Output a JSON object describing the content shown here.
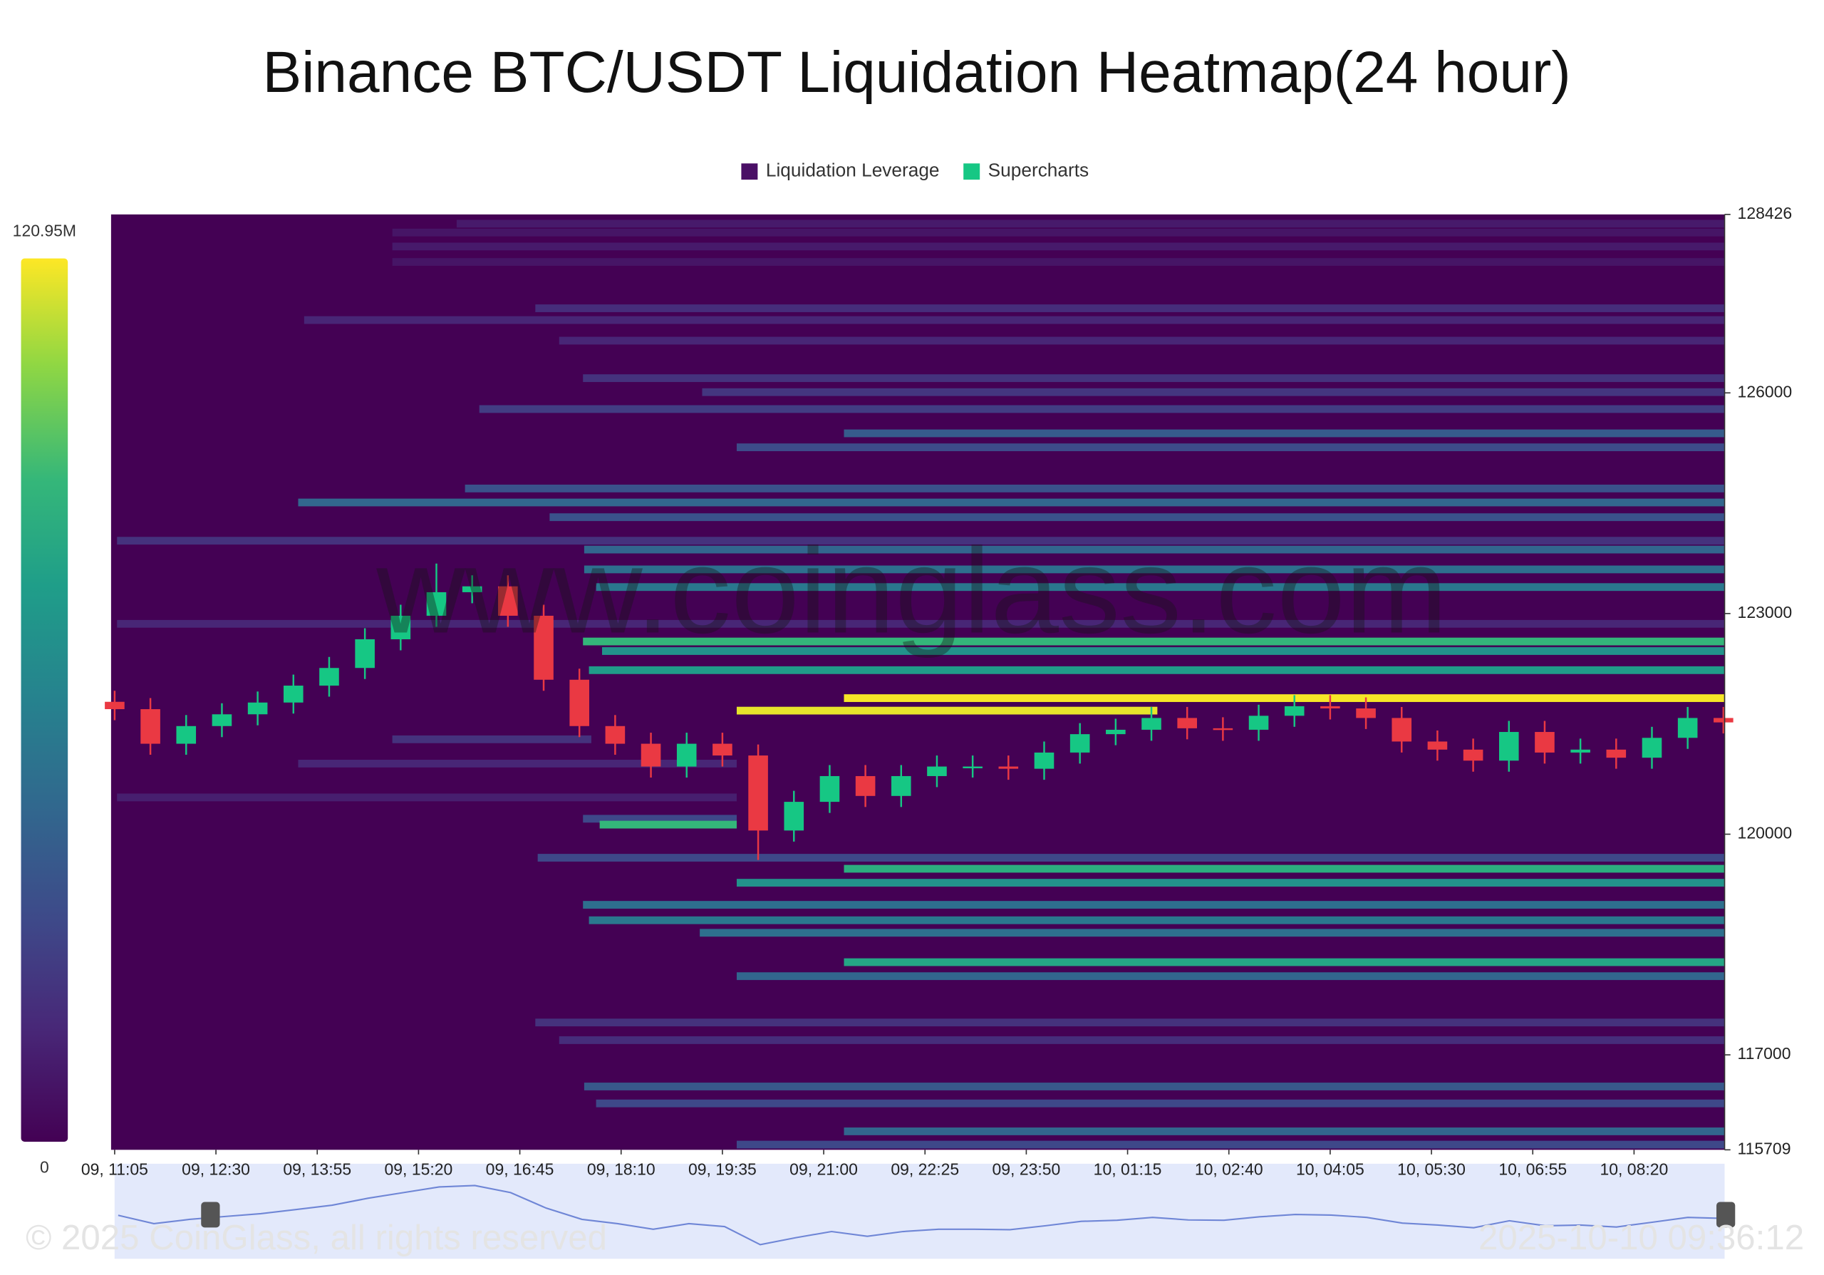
{
  "chart_data": {
    "type": "heatmap",
    "title": "Binance BTC/USDT Liquidation Heatmap(24 hour)",
    "watermark": "www.coinglass.com",
    "copyright": "© 2025 CoinGlass, all rights reserved",
    "timestamp": "2025-10-10 09:36:12",
    "xlim": [
      -3,
      1351
    ],
    "xticks": [
      {
        "value": 0,
        "label": "09, 11:05"
      },
      {
        "value": 85,
        "label": "09, 12:30"
      },
      {
        "value": 170,
        "label": "09, 13:55"
      },
      {
        "value": 255,
        "label": "09, 15:20"
      },
      {
        "value": 340,
        "label": "09, 16:45"
      },
      {
        "value": 425,
        "label": "09, 18:10"
      },
      {
        "value": 510,
        "label": "09, 19:35"
      },
      {
        "value": 595,
        "label": "09, 21:00"
      },
      {
        "value": 680,
        "label": "09, 22:25"
      },
      {
        "value": 765,
        "label": "09, 23:50"
      },
      {
        "value": 850,
        "label": "10, 01:15"
      },
      {
        "value": 935,
        "label": "10, 02:40"
      },
      {
        "value": 1020,
        "label": "10, 04:05"
      },
      {
        "value": 1105,
        "label": "10, 05:30"
      },
      {
        "value": 1190,
        "label": "10, 06:55"
      },
      {
        "value": 1275,
        "label": "10, 08:20"
      }
    ],
    "ylim": [
      115709,
      128426
    ],
    "yticks": [
      115709,
      117000,
      120000,
      123000,
      126000,
      128426
    ],
    "colorbar": {
      "ticks": [
        0,
        {
          "value": 120.95,
          "label": "120.95M"
        }
      ]
    },
    "series": [
      {
        "name": "Liquidation Leverage",
        "color": "#4a0f66",
        "price": [
          128300,
          128180,
          127990,
          127780,
          127150,
          126990,
          126710,
          126200,
          126010,
          125780,
          125450,
          125260,
          124700,
          124510,
          124310,
          123990,
          123870,
          123600,
          123360,
          122860,
          122620,
          122490,
          122230,
          121850,
          121680,
          121290,
          120960,
          120500,
          120210,
          120130,
          119680,
          119530,
          119340,
          119040,
          118830,
          118660,
          118260,
          118070,
          117440,
          117200,
          116570,
          116340,
          115960,
          115780
        ],
        "start": [
          287,
          233,
          233,
          233,
          353,
          159,
          373,
          393,
          493,
          306,
          612,
          522,
          294,
          154,
          365,
          2,
          394,
          394,
          404,
          2,
          393,
          409,
          398,
          612,
          522,
          233,
          154,
          2,
          393,
          407,
          355,
          612,
          522,
          393,
          398,
          491,
          612,
          522,
          353,
          373,
          394,
          404,
          612,
          522
        ],
        "end": [
          1351,
          1351,
          1351,
          1351,
          1351,
          1351,
          1351,
          1351,
          1351,
          1351,
          1351,
          1351,
          1351,
          1351,
          1351,
          1351,
          1351,
          1351,
          1351,
          1351,
          1351,
          1351,
          1351,
          1351,
          875,
          400,
          522,
          522,
          522,
          522,
          1351,
          1351,
          1351,
          1351,
          1351,
          1351,
          1351,
          1351,
          1351,
          1351,
          1351,
          1351,
          1351,
          1351
        ],
        "values": [
          10,
          8,
          10,
          8,
          18,
          15,
          15,
          20,
          22,
          25,
          40,
          32,
          35,
          45,
          35,
          20,
          45,
          50,
          55,
          15,
          90,
          70,
          75,
          120,
          118,
          20,
          15,
          12,
          30,
          90,
          30,
          85,
          70,
          50,
          55,
          50,
          80,
          45,
          20,
          18,
          38,
          30,
          45,
          30
        ]
      },
      {
        "name": "Supercharts",
        "color": "#16c784",
        "down_color": "#ea3943",
        "x": [
          0,
          30,
          60,
          90,
          120,
          150,
          180,
          210,
          240,
          270,
          300,
          330,
          360,
          390,
          420,
          450,
          480,
          510,
          540,
          570,
          600,
          630,
          660,
          690,
          720,
          750,
          780,
          810,
          840,
          870,
          900,
          930,
          960,
          990,
          1020,
          1050,
          1080,
          1110,
          1140,
          1170,
          1200,
          1230,
          1260,
          1290,
          1320,
          1350
        ],
        "open": [
          121800,
          121700,
          121230,
          121470,
          121630,
          121790,
          122020,
          122260,
          122650,
          122970,
          123290,
          123370,
          122970,
          122100,
          121470,
          121230,
          120920,
          121230,
          121070,
          120050,
          120440,
          120790,
          120520,
          120790,
          120920,
          120920,
          120890,
          121110,
          121360,
          121420,
          121580,
          121440,
          121420,
          121610,
          121740,
          121710,
          121580,
          121260,
          121150,
          121000,
          121390,
          121110,
          121150,
          121040,
          121310,
          121580
        ],
        "high": [
          121950,
          121850,
          121620,
          121780,
          121940,
          122170,
          122410,
          122800,
          123120,
          123680,
          123520,
          123520,
          123120,
          122250,
          121620,
          121380,
          121380,
          121380,
          121220,
          120590,
          120940,
          120940,
          120940,
          121070,
          121070,
          121070,
          121260,
          121510,
          121570,
          121730,
          121730,
          121590,
          121760,
          121890,
          121890,
          121860,
          121730,
          121410,
          121300,
          121540,
          121540,
          121300,
          121300,
          121460,
          121730,
          121730
        ],
        "low": [
          121550,
          121080,
          121080,
          121320,
          121480,
          121640,
          121870,
          122110,
          122500,
          122820,
          123140,
          122820,
          121950,
          121320,
          121080,
          120770,
          120770,
          120920,
          119650,
          119900,
          120290,
          120370,
          120370,
          120640,
          120770,
          120740,
          120740,
          120960,
          121210,
          121270,
          121290,
          121270,
          121270,
          121460,
          121560,
          121430,
          121110,
          121000,
          120850,
          120850,
          120960,
          120960,
          120890,
          120890,
          121160,
          121370
        ],
        "close": [
          121700,
          121230,
          121470,
          121630,
          121790,
          122020,
          122260,
          122650,
          122970,
          123290,
          123370,
          122970,
          122100,
          121470,
          121230,
          120920,
          121230,
          121070,
          120050,
          120440,
          120790,
          120520,
          120790,
          120920,
          120920,
          120890,
          121110,
          121360,
          121420,
          121580,
          121440,
          121420,
          121610,
          121740,
          121710,
          121580,
          121260,
          121150,
          121000,
          121390,
          121110,
          121150,
          121040,
          121310,
          121580,
          121520
        ]
      }
    ]
  }
}
